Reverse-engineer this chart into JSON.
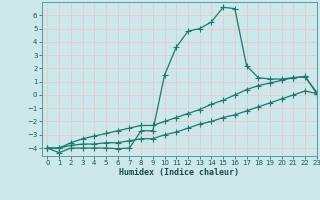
{
  "title": "",
  "xlabel": "Humidex (Indice chaleur)",
  "bg_color": "#cce8ea",
  "grid_color": "#e8c8c8",
  "line_color": "#1a7a6e",
  "xlim": [
    -0.5,
    23
  ],
  "ylim": [
    -4.6,
    7.0
  ],
  "xticks": [
    0,
    1,
    2,
    3,
    4,
    5,
    6,
    7,
    8,
    9,
    10,
    11,
    12,
    13,
    14,
    15,
    16,
    17,
    18,
    19,
    20,
    21,
    22,
    23
  ],
  "yticks": [
    -4,
    -3,
    -2,
    -1,
    0,
    1,
    2,
    3,
    4,
    5,
    6
  ],
  "line1_x": [
    0,
    1,
    2,
    3,
    4,
    5,
    6,
    7,
    8,
    9,
    10,
    11,
    12,
    13,
    14,
    15,
    16,
    17,
    18,
    19,
    20,
    21,
    22,
    23
  ],
  "line1_y": [
    -4.0,
    -4.35,
    -4.0,
    -4.0,
    -4.0,
    -4.0,
    -4.05,
    -4.0,
    -2.7,
    -2.7,
    1.5,
    3.6,
    4.8,
    5.0,
    5.5,
    6.6,
    6.5,
    2.2,
    1.3,
    1.2,
    1.2,
    1.3,
    1.35,
    0.2
  ],
  "line2_x": [
    0,
    1,
    2,
    3,
    4,
    5,
    6,
    7,
    8,
    9,
    10,
    11,
    12,
    13,
    14,
    15,
    16,
    17,
    18,
    19,
    20,
    21,
    22,
    23
  ],
  "line2_y": [
    -4.0,
    -4.0,
    -3.8,
    -3.7,
    -3.7,
    -3.6,
    -3.6,
    -3.45,
    -3.3,
    -3.3,
    -3.0,
    -2.8,
    -2.5,
    -2.2,
    -2.0,
    -1.7,
    -1.5,
    -1.2,
    -0.9,
    -0.6,
    -0.3,
    0.0,
    0.3,
    0.1
  ],
  "line3_x": [
    0,
    1,
    2,
    3,
    4,
    5,
    6,
    7,
    8,
    9,
    10,
    11,
    12,
    13,
    14,
    15,
    16,
    17,
    18,
    19,
    20,
    21,
    22,
    23
  ],
  "line3_y": [
    -4.0,
    -4.0,
    -3.6,
    -3.3,
    -3.1,
    -2.9,
    -2.7,
    -2.5,
    -2.3,
    -2.3,
    -2.0,
    -1.7,
    -1.4,
    -1.1,
    -0.7,
    -0.4,
    0.0,
    0.4,
    0.7,
    0.9,
    1.1,
    1.3,
    1.4,
    0.1
  ]
}
